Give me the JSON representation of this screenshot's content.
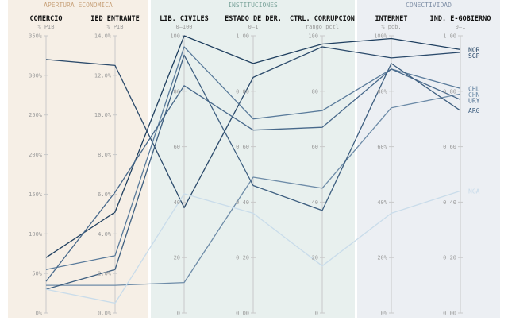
{
  "chart_data": {
    "type": "parallel-coordinates",
    "groups": [
      {
        "key": "apertura",
        "label": "APERTURA ECONOMICA",
        "axes": [
          0,
          1
        ],
        "bg": "#f6efe6",
        "color": "#c8a27a"
      },
      {
        "key": "instituciones",
        "label": "INSTITUCIONES",
        "axes": [
          2,
          3,
          4
        ],
        "bg": "#e8f0ee",
        "color": "#7aa39a"
      },
      {
        "key": "conectividad",
        "label": "CONECTIVIDAD",
        "axes": [
          5,
          6
        ],
        "bg": "#eceff3",
        "color": "#7f8fa6"
      }
    ],
    "axes": [
      {
        "name": "COMERCIO",
        "unit": "% PIB",
        "min": 0,
        "max": 350,
        "ticks": [
          "0%",
          "50%",
          "100%",
          "150%",
          "200%",
          "250%",
          "300%",
          "350%"
        ]
      },
      {
        "name": "IED ENTRANTE",
        "unit": "% PIB",
        "min": 0,
        "max": 14,
        "ticks": [
          "0.0%",
          "2.0%",
          "4.0%",
          "6.0%",
          "8.0%",
          "10.0%",
          "12.0%",
          "14.0%"
        ]
      },
      {
        "name": "LIB. CIVILES",
        "unit": "0–100",
        "min": 0,
        "max": 100,
        "ticks": [
          "0",
          "20",
          "40",
          "60",
          "80",
          "100"
        ]
      },
      {
        "name": "ESTADO DE DER.",
        "unit": "0–1",
        "min": 0,
        "max": 1,
        "ticks": [
          "0.00",
          "0.20",
          "0.40",
          "0.60",
          "0.80",
          "1.00"
        ]
      },
      {
        "name": "CTRL. CORRUPCION",
        "unit": "rango pctl",
        "min": 0,
        "max": 100,
        "ticks": [
          "0",
          "20",
          "40",
          "60",
          "80",
          "100"
        ]
      },
      {
        "name": "INTERNET",
        "unit": "% pob.",
        "min": 0,
        "max": 100,
        "ticks": [
          "0%",
          "20%",
          "40%",
          "60%",
          "80%",
          "100%"
        ]
      },
      {
        "name": "IND. E-GOBIERNO",
        "unit": "0–1",
        "min": 0,
        "max": 1,
        "ticks": [
          "0.00",
          "0.20",
          "0.40",
          "0.60",
          "0.80",
          "1.00"
        ]
      }
    ],
    "series": [
      {
        "name": "NOR",
        "color": "#1f3f5f",
        "values": [
          70,
          5.1,
          100,
          0.9,
          97,
          99,
          0.95
        ]
      },
      {
        "name": "SGP",
        "color": "#2b4a6b",
        "values": [
          320,
          12.5,
          38,
          0.85,
          96,
          92,
          0.94
        ]
      },
      {
        "name": "CHL",
        "color": "#5a7b9b",
        "values": [
          55,
          2.9,
          96,
          0.7,
          73,
          88,
          0.81
        ]
      },
      {
        "name": "CHN",
        "color": "#6e8ca8",
        "values": [
          35,
          1.4,
          11,
          0.49,
          45,
          74,
          0.79
        ]
      },
      {
        "name": "URY",
        "color": "#48698b",
        "values": [
          40,
          6.1,
          82,
          0.66,
          67,
          88,
          0.77
        ]
      },
      {
        "name": "ARG",
        "color": "#3e5f80",
        "values": [
          30,
          2.2,
          93,
          0.46,
          37,
          90,
          0.73
        ]
      },
      {
        "name": "NGA",
        "color": "#c9dcea",
        "values": [
          30,
          0.5,
          43,
          0.36,
          17,
          36,
          0.44
        ]
      }
    ]
  }
}
